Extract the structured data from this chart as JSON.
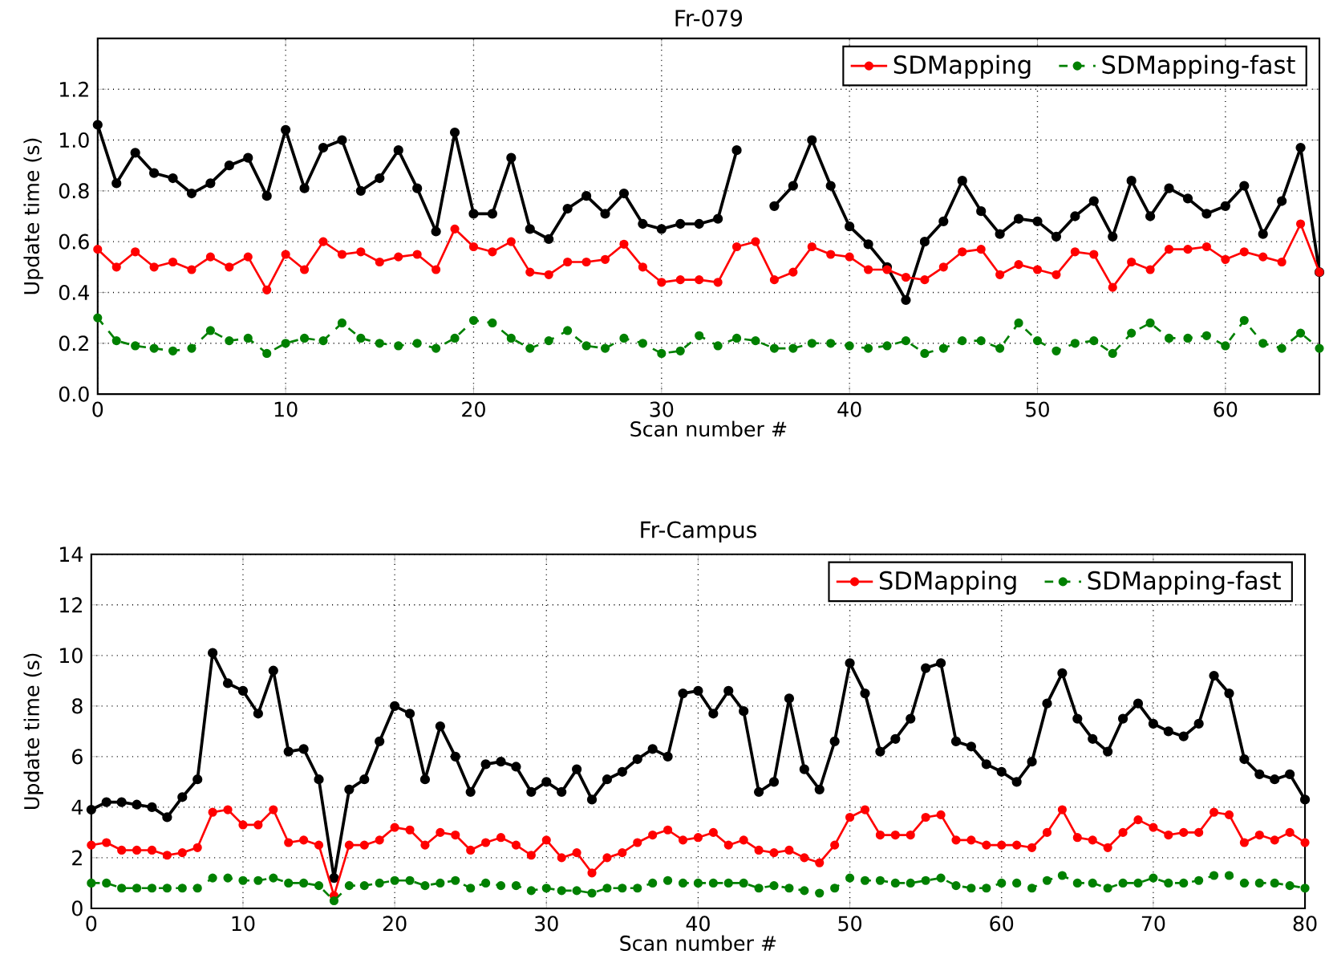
{
  "chart_data": [
    {
      "type": "line",
      "title": "Fr-079",
      "xlabel": "Scan number #",
      "ylabel": "Update time (s)",
      "xlim": [
        0,
        65
      ],
      "xticks": [
        0,
        10,
        20,
        30,
        40,
        50,
        60
      ],
      "ylim": [
        0,
        1.4
      ],
      "yticks": [
        {
          "value": 0,
          "label": "0.0"
        },
        {
          "value": 0.2,
          "label": "0.2"
        },
        {
          "value": 0.4,
          "label": "0.4"
        },
        {
          "value": 0.6,
          "label": "0.6"
        },
        {
          "value": 0.8,
          "label": "0.8"
        },
        {
          "value": 1.0,
          "label": "1.0"
        },
        {
          "value": 1.2,
          "label": "1.2"
        },
        {
          "value": 1.4,
          "label": null
        }
      ],
      "grid": true,
      "legend": "top right",
      "marker": "circle",
      "x": [
        0,
        1,
        2,
        3,
        4,
        5,
        6,
        7,
        8,
        9,
        10,
        11,
        12,
        13,
        14,
        15,
        16,
        17,
        18,
        19,
        20,
        21,
        22,
        23,
        24,
        25,
        26,
        27,
        28,
        29,
        30,
        31,
        32,
        33,
        34,
        35,
        36,
        37,
        38,
        39,
        40,
        41,
        42,
        43,
        44,
        45,
        46,
        47,
        48,
        49,
        50,
        51,
        52,
        53,
        54,
        55,
        56,
        57,
        58,
        59,
        60,
        61,
        62,
        63,
        64,
        65
      ],
      "series": [
        {
          "color": "#000000",
          "line_style": "solid",
          "values": [
            1.06,
            0.83,
            0.95,
            0.87,
            0.85,
            0.79,
            0.83,
            0.9,
            0.93,
            0.78,
            1.04,
            0.81,
            0.97,
            1.0,
            0.8,
            0.85,
            0.96,
            0.81,
            0.64,
            1.03,
            0.71,
            0.71,
            0.93,
            0.65,
            0.61,
            0.73,
            0.78,
            0.71,
            0.79,
            0.67,
            0.65,
            0.67,
            0.67,
            0.69,
            0.96,
            null,
            0.74,
            0.82,
            1.0,
            0.82,
            0.66,
            0.59,
            0.5,
            0.37,
            0.6,
            0.68,
            0.84,
            0.72,
            0.63,
            0.69,
            0.68,
            0.62,
            0.7,
            0.76,
            0.62,
            0.84,
            0.7,
            0.81,
            0.77,
            0.71,
            0.74,
            0.82,
            0.63,
            0.76,
            0.97,
            0.48
          ]
        },
        {
          "name": "SDMapping",
          "color": "#ff0000",
          "line_style": "solid",
          "values": [
            0.57,
            0.5,
            0.56,
            0.5,
            0.52,
            0.49,
            0.54,
            0.5,
            0.54,
            0.41,
            0.55,
            0.49,
            0.6,
            0.55,
            0.56,
            0.52,
            0.54,
            0.55,
            0.49,
            0.65,
            0.58,
            0.56,
            0.6,
            0.48,
            0.47,
            0.52,
            0.52,
            0.53,
            0.59,
            0.5,
            0.44,
            0.45,
            0.45,
            0.44,
            0.58,
            0.6,
            0.45,
            0.48,
            0.58,
            0.55,
            0.54,
            0.49,
            0.49,
            0.46,
            0.45,
            0.5,
            0.56,
            0.57,
            0.47,
            0.51,
            0.49,
            0.47,
            0.56,
            0.55,
            0.42,
            0.52,
            0.49,
            0.57,
            0.57,
            0.58,
            0.53,
            0.56,
            0.54,
            0.52,
            0.67,
            0.48
          ]
        },
        {
          "name": "SDMapping-fast",
          "color": "#008000",
          "line_style": "dashed",
          "values": [
            0.3,
            0.21,
            0.19,
            0.18,
            0.17,
            0.18,
            0.25,
            0.21,
            0.22,
            0.16,
            0.2,
            0.22,
            0.21,
            0.28,
            0.22,
            0.2,
            0.19,
            0.2,
            0.18,
            0.22,
            0.29,
            0.28,
            0.22,
            0.18,
            0.21,
            0.25,
            0.19,
            0.18,
            0.22,
            0.2,
            0.16,
            0.17,
            0.23,
            0.19,
            0.22,
            0.21,
            0.18,
            0.18,
            0.2,
            0.2,
            0.19,
            0.18,
            0.19,
            0.21,
            0.16,
            0.18,
            0.21,
            0.21,
            0.18,
            0.28,
            0.21,
            0.17,
            0.2,
            0.21,
            0.16,
            0.24,
            0.28,
            0.22,
            0.22,
            0.23,
            0.19,
            0.29,
            0.2,
            0.18,
            0.24,
            0.18
          ]
        }
      ]
    },
    {
      "type": "line",
      "title": "Fr-Campus",
      "xlabel": "Scan number #",
      "ylabel": "Update time (s)",
      "xlim": [
        0,
        80
      ],
      "xticks": [
        0,
        10,
        20,
        30,
        40,
        50,
        60,
        70,
        80
      ],
      "ylim": [
        0,
        14
      ],
      "yticks": [
        0,
        2,
        4,
        6,
        8,
        10,
        12,
        14
      ],
      "grid": true,
      "legend": "top right",
      "marker": "circle",
      "x": [
        0,
        1,
        2,
        3,
        4,
        5,
        6,
        7,
        8,
        9,
        10,
        11,
        12,
        13,
        14,
        15,
        16,
        17,
        18,
        19,
        20,
        21,
        22,
        23,
        24,
        25,
        26,
        27,
        28,
        29,
        30,
        31,
        32,
        33,
        34,
        35,
        36,
        37,
        38,
        39,
        40,
        41,
        42,
        43,
        44,
        45,
        46,
        47,
        48,
        49,
        50,
        51,
        52,
        53,
        54,
        55,
        56,
        57,
        58,
        59,
        60,
        61,
        62,
        63,
        64,
        65,
        66,
        67,
        68,
        69,
        70,
        71,
        72,
        73,
        74,
        75,
        76,
        77,
        78,
        79,
        80
      ],
      "series": [
        {
          "color": "#000000",
          "line_style": "solid",
          "values": [
            3.9,
            4.2,
            4.2,
            4.1,
            4.0,
            3.6,
            4.4,
            5.1,
            10.1,
            8.9,
            8.6,
            7.7,
            9.4,
            6.2,
            6.3,
            5.1,
            1.2,
            4.7,
            5.1,
            6.6,
            8.0,
            7.7,
            5.1,
            7.2,
            6.0,
            4.6,
            5.7,
            5.8,
            5.6,
            4.6,
            5.0,
            4.6,
            5.5,
            4.3,
            5.1,
            5.4,
            5.9,
            6.3,
            6.0,
            8.5,
            8.6,
            7.7,
            8.6,
            7.8,
            4.6,
            5.0,
            8.3,
            5.5,
            4.7,
            6.6,
            9.7,
            8.5,
            6.2,
            6.7,
            7.5,
            9.5,
            9.7,
            6.6,
            6.4,
            5.7,
            5.4,
            5.0,
            5.8,
            8.1,
            9.3,
            7.5,
            6.7,
            6.2,
            7.5,
            8.1,
            7.3,
            7.0,
            6.8,
            7.3,
            9.2,
            8.5,
            5.9,
            5.3,
            5.1,
            5.3,
            4.3
          ]
        },
        {
          "name": "SDMapping",
          "color": "#ff0000",
          "line_style": "solid",
          "values": [
            2.5,
            2.6,
            2.3,
            2.3,
            2.3,
            2.1,
            2.2,
            2.4,
            3.8,
            3.9,
            3.3,
            3.3,
            3.9,
            2.6,
            2.7,
            2.5,
            0.5,
            2.5,
            2.5,
            2.7,
            3.2,
            3.1,
            2.5,
            3.0,
            2.9,
            2.3,
            2.6,
            2.8,
            2.5,
            2.1,
            2.7,
            2.0,
            2.2,
            1.4,
            2.0,
            2.2,
            2.6,
            2.9,
            3.1,
            2.7,
            2.8,
            3.0,
            2.5,
            2.7,
            2.3,
            2.2,
            2.3,
            2.0,
            1.8,
            2.5,
            3.6,
            3.9,
            2.9,
            2.9,
            2.9,
            3.6,
            3.7,
            2.7,
            2.7,
            2.5,
            2.5,
            2.5,
            2.4,
            3.0,
            3.9,
            2.8,
            2.7,
            2.4,
            3.0,
            3.5,
            3.2,
            2.9,
            3.0,
            3.0,
            3.8,
            3.7,
            2.6,
            2.9,
            2.7,
            3.0,
            2.6
          ]
        },
        {
          "name": "SDMapping-fast",
          "color": "#008000",
          "line_style": "dashed",
          "values": [
            1.0,
            1.0,
            0.8,
            0.8,
            0.8,
            0.8,
            0.8,
            0.8,
            1.2,
            1.2,
            1.1,
            1.1,
            1.2,
            1.0,
            1.0,
            0.9,
            0.3,
            0.9,
            0.9,
            1.0,
            1.1,
            1.1,
            0.9,
            1.0,
            1.1,
            0.8,
            1.0,
            0.9,
            0.9,
            0.7,
            0.8,
            0.7,
            0.7,
            0.6,
            0.8,
            0.8,
            0.8,
            1.0,
            1.1,
            1.0,
            1.0,
            1.0,
            1.0,
            1.0,
            0.8,
            0.9,
            0.8,
            0.7,
            0.6,
            0.8,
            1.2,
            1.1,
            1.1,
            1.0,
            1.0,
            1.1,
            1.2,
            0.9,
            0.8,
            0.8,
            1.0,
            1.0,
            0.8,
            1.1,
            1.3,
            1.0,
            1.0,
            0.8,
            1.0,
            1.0,
            1.2,
            1.0,
            1.0,
            1.1,
            1.3,
            1.3,
            1.0,
            1.0,
            1.0,
            0.9,
            0.8
          ]
        }
      ]
    }
  ]
}
